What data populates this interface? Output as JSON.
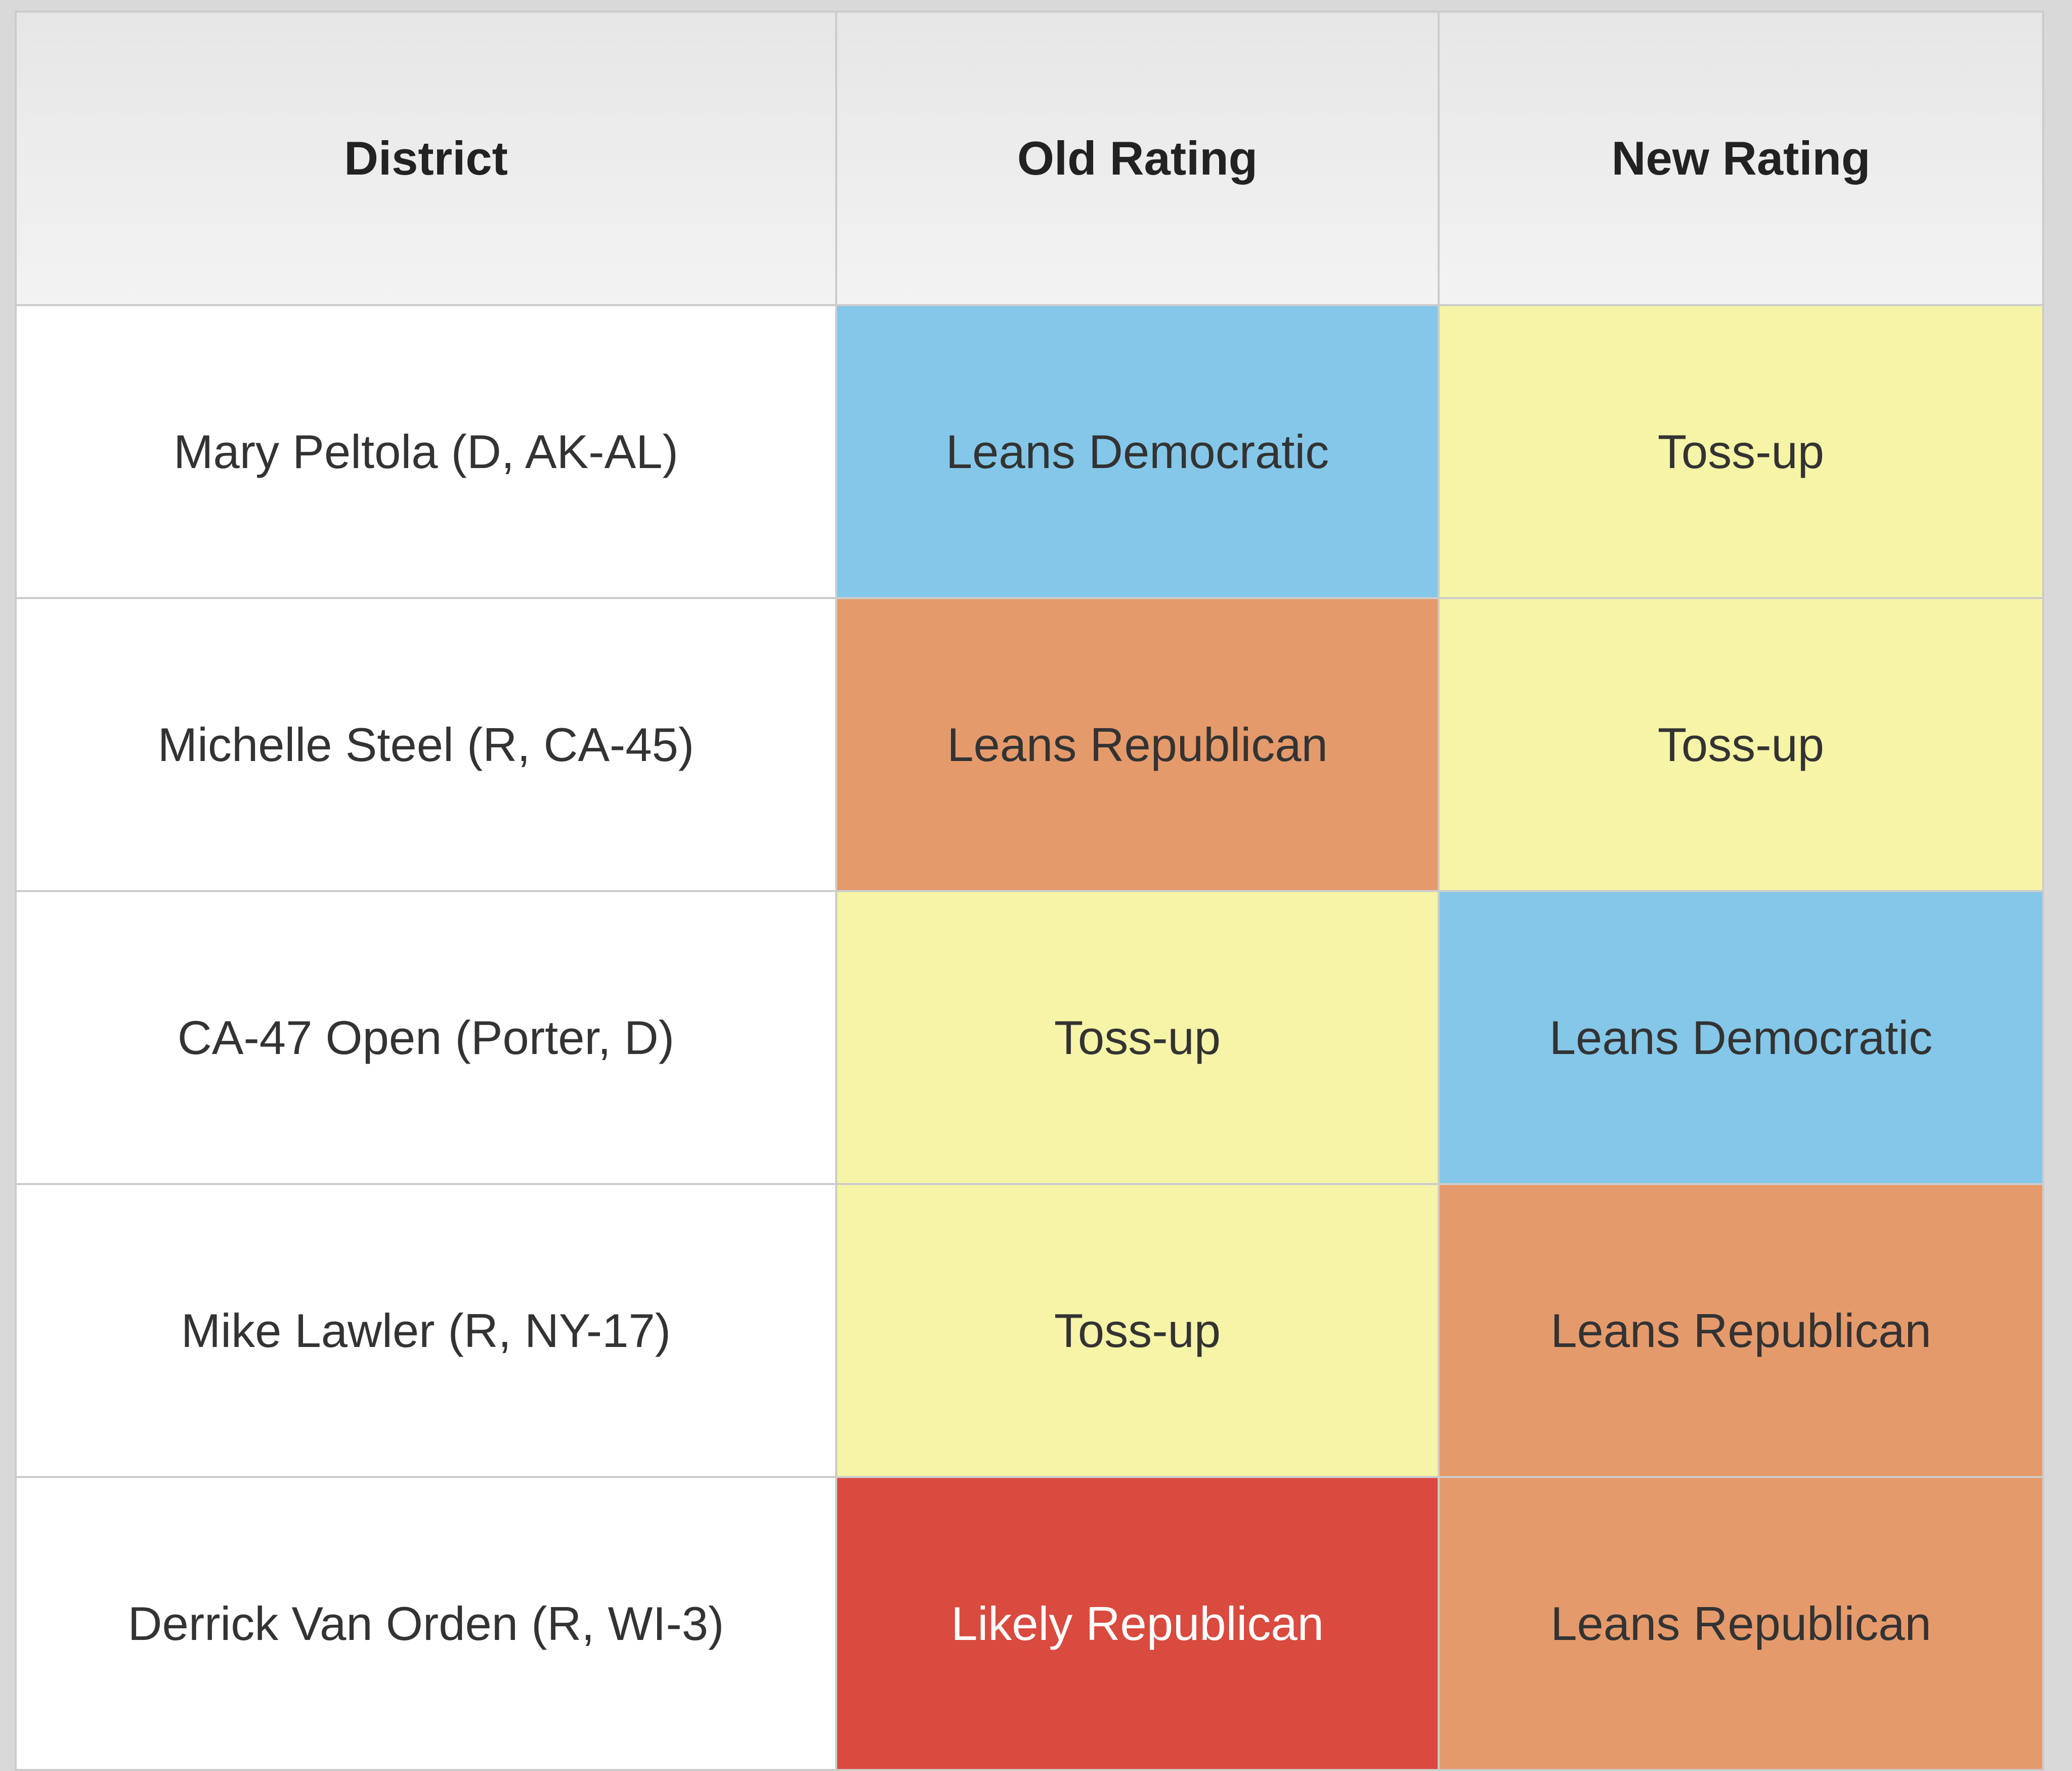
{
  "table": {
    "headers": [
      "District",
      "Old Rating",
      "New Rating"
    ],
    "rows": [
      {
        "district": "Mary Peltola (D, AK-AL)",
        "old_rating": "Leans Democratic",
        "new_rating": "Toss-up"
      },
      {
        "district": "Michelle Steel (R, CA-45)",
        "old_rating": "Leans Republican",
        "new_rating": "Toss-up"
      },
      {
        "district": "CA-47 Open (Porter, D)",
        "old_rating": "Toss-up",
        "new_rating": "Leans Democratic"
      },
      {
        "district": "Mike Lawler (R, NY-17)",
        "old_rating": "Toss-up",
        "new_rating": "Leans Republican"
      },
      {
        "district": "Derrick Van Orden (R, WI-3)",
        "old_rating": "Likely Republican",
        "new_rating": "Leans Republican"
      }
    ]
  },
  "rating_colors": {
    "Leans Democratic": "#84c7e8",
    "Toss-up": "#f6f4a6",
    "Leans Republican": "#e59a6b",
    "Likely Republican": "#d94a3f"
  }
}
